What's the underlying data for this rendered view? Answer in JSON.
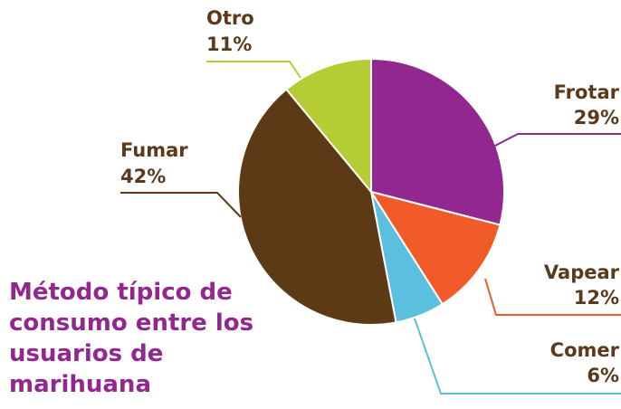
{
  "chart_data": {
    "type": "pie",
    "title": "Método típico de consumo entre los usuarios de marihuana",
    "categories": [
      "Frotar",
      "Vapear",
      "Comer",
      "Fumar",
      "Otro"
    ],
    "values": [
      29,
      12,
      6,
      42,
      11
    ],
    "value_labels": [
      "29%",
      "12%",
      "6%",
      "42%",
      "11%"
    ],
    "colors": [
      "#92278f",
      "#f15a29",
      "#5bc0de",
      "#5c3a16",
      "#b5cc34"
    ]
  }
}
